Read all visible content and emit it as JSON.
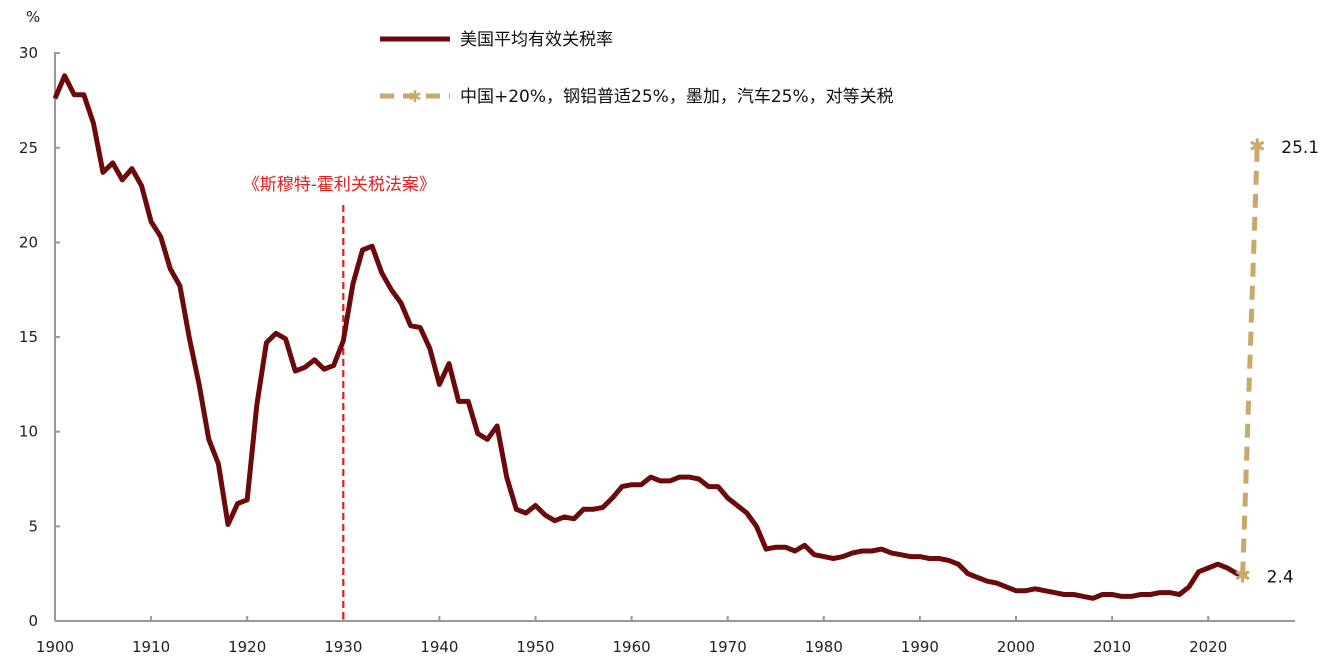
{
  "chart_data": {
    "type": "line",
    "title": "",
    "xlabel": "",
    "ylabel": "%",
    "xlim": [
      1900,
      2029
    ],
    "ylim": [
      0,
      30
    ],
    "x_ticks": [
      "1900",
      "1910",
      "1920",
      "1930",
      "1940",
      "1950",
      "1960",
      "1970",
      "1980",
      "1990",
      "2000",
      "2010",
      "2020"
    ],
    "y_ticks": [
      "0",
      "5",
      "10",
      "15",
      "20",
      "25",
      "30"
    ],
    "grid": false,
    "legend_placement": "top-center",
    "series": [
      {
        "name": "美国平均有效关税率",
        "color": "#6b0a0a",
        "style": "solid",
        "x": [
          1900,
          1901,
          1902,
          1903,
          1904,
          1905,
          1906,
          1907,
          1908,
          1909,
          1910,
          1911,
          1912,
          1913,
          1914,
          1915,
          1916,
          1917,
          1918,
          1919,
          1920,
          1921,
          1922,
          1923,
          1924,
          1925,
          1926,
          1927,
          1928,
          1929,
          1930,
          1931,
          1932,
          1933,
          1934,
          1935,
          1936,
          1937,
          1938,
          1939,
          1940,
          1941,
          1942,
          1943,
          1944,
          1945,
          1946,
          1947,
          1948,
          1949,
          1950,
          1951,
          1952,
          1953,
          1954,
          1955,
          1956,
          1957,
          1958,
          1959,
          1960,
          1961,
          1962,
          1963,
          1964,
          1965,
          1966,
          1967,
          1968,
          1969,
          1970,
          1971,
          1972,
          1973,
          1974,
          1975,
          1976,
          1977,
          1978,
          1979,
          1980,
          1981,
          1982,
          1983,
          1984,
          1985,
          1986,
          1987,
          1988,
          1989,
          1990,
          1991,
          1992,
          1993,
          1994,
          1995,
          1996,
          1997,
          1998,
          1999,
          2000,
          2001,
          2002,
          2003,
          2004,
          2005,
          2006,
          2007,
          2008,
          2009,
          2010,
          2011,
          2012,
          2013,
          2014,
          2015,
          2016,
          2017,
          2018,
          2019,
          2020,
          2021,
          2022,
          2023,
          2024
        ],
        "values": [
          27.6,
          28.8,
          27.8,
          27.8,
          26.3,
          23.7,
          24.2,
          23.3,
          23.9,
          23.0,
          21.1,
          20.3,
          18.6,
          17.7,
          14.9,
          12.5,
          9.6,
          8.3,
          5.1,
          6.2,
          6.4,
          11.4,
          14.7,
          15.2,
          14.9,
          13.2,
          13.4,
          13.8,
          13.3,
          13.5,
          14.8,
          17.8,
          19.6,
          19.8,
          18.4,
          17.5,
          16.8,
          15.6,
          15.5,
          14.4,
          12.5,
          13.6,
          11.6,
          11.6,
          9.9,
          9.6,
          10.3,
          7.6,
          5.9,
          5.7,
          6.1,
          5.6,
          5.3,
          5.5,
          5.4,
          5.9,
          5.9,
          6.0,
          6.5,
          7.1,
          7.2,
          7.2,
          7.6,
          7.4,
          7.4,
          7.6,
          7.6,
          7.5,
          7.1,
          7.1,
          6.5,
          6.1,
          5.7,
          5.0,
          3.8,
          3.9,
          3.9,
          3.7,
          4.0,
          3.5,
          3.4,
          3.3,
          3.4,
          3.6,
          3.7,
          3.7,
          3.8,
          3.6,
          3.5,
          3.4,
          3.4,
          3.3,
          3.3,
          3.2,
          3.0,
          2.5,
          2.3,
          2.1,
          2.0,
          1.8,
          1.6,
          1.6,
          1.7,
          1.6,
          1.5,
          1.4,
          1.4,
          1.3,
          1.2,
          1.4,
          1.4,
          1.3,
          1.3,
          1.4,
          1.4,
          1.5,
          1.5,
          1.4,
          1.8,
          2.6,
          2.8,
          3.0,
          2.8,
          2.5,
          2.4
        ]
      },
      {
        "name": "中国+20%，钢铝普适25%，墨加，汽车25%，对等关税",
        "color": "#c8a96a",
        "style": "dashed",
        "marker": "star",
        "x": [
          2024,
          2025
        ],
        "values": [
          2.4,
          25.1
        ],
        "data_labels": [
          "2.4",
          "25.1"
        ]
      }
    ],
    "annotations": [
      {
        "text": "《斯穆特-霍利关税法案》",
        "x": 1930,
        "color": "#e02020",
        "style": "dashed-vertical-line"
      }
    ]
  }
}
